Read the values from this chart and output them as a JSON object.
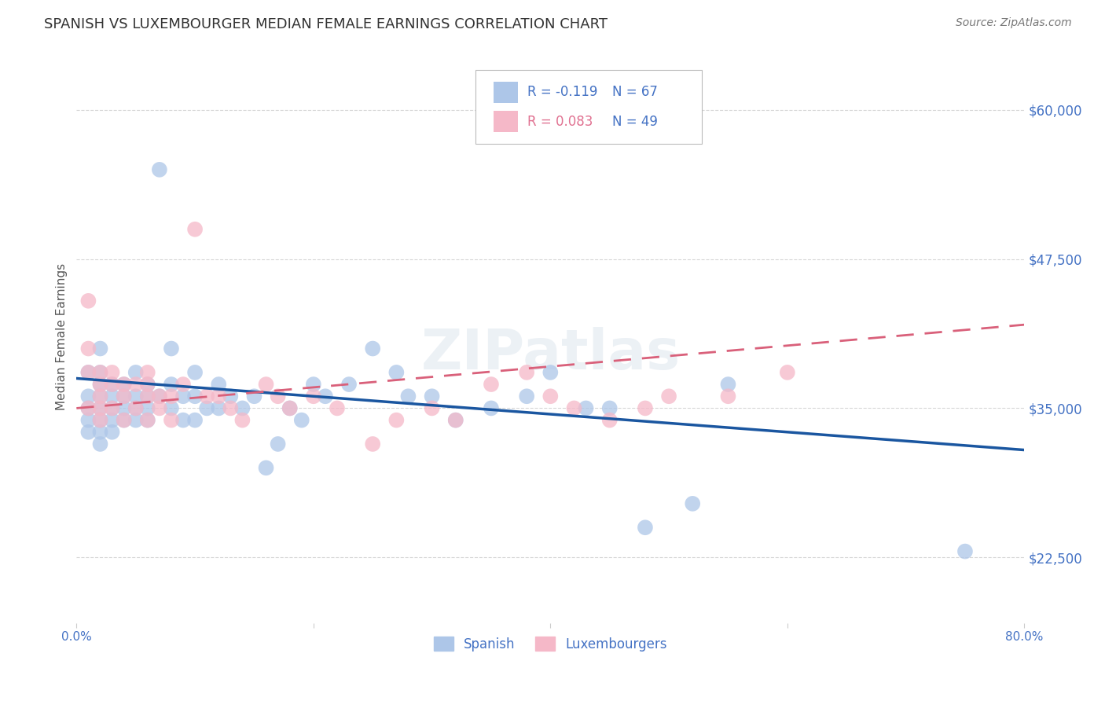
{
  "title": "SPANISH VS LUXEMBOURGER MEDIAN FEMALE EARNINGS CORRELATION CHART",
  "source_text": "Source: ZipAtlas.com",
  "ylabel": "Median Female Earnings",
  "xlim": [
    0.0,
    0.8
  ],
  "ylim": [
    17000,
    65000
  ],
  "yticks": [
    22500,
    35000,
    47500,
    60000
  ],
  "ytick_labels": [
    "$22,500",
    "$35,000",
    "$47,500",
    "$60,000"
  ],
  "xticks": [
    0.0,
    0.2,
    0.4,
    0.6,
    0.8
  ],
  "xtick_labels": [
    "0.0%",
    "",
    "",
    "",
    "80.0%"
  ],
  "title_color": "#333333",
  "title_fontsize": 13,
  "source_color": "#777777",
  "source_fontsize": 10,
  "axis_label_color": "#555555",
  "blue_color": "#adc6e8",
  "pink_color": "#f5b8c8",
  "blue_line_color": "#1a56a0",
  "pink_line_color": "#d9607a",
  "legend_label_blue": "Spanish",
  "legend_label_pink": "Luxembourgers",
  "blue_R": -0.119,
  "blue_N": 67,
  "pink_R": 0.083,
  "pink_N": 49,
  "blue_line_x0": 0.0,
  "blue_line_y0": 37500,
  "blue_line_x1": 0.8,
  "blue_line_y1": 31500,
  "pink_line_x0": 0.0,
  "pink_line_y0": 35000,
  "pink_line_x1": 0.8,
  "pink_line_y1": 42000,
  "blue_scatter_x": [
    0.01,
    0.01,
    0.01,
    0.01,
    0.01,
    0.02,
    0.02,
    0.02,
    0.02,
    0.02,
    0.02,
    0.02,
    0.02,
    0.03,
    0.03,
    0.03,
    0.03,
    0.03,
    0.04,
    0.04,
    0.04,
    0.04,
    0.05,
    0.05,
    0.05,
    0.05,
    0.06,
    0.06,
    0.06,
    0.06,
    0.07,
    0.07,
    0.08,
    0.08,
    0.08,
    0.09,
    0.09,
    0.1,
    0.1,
    0.1,
    0.11,
    0.12,
    0.12,
    0.13,
    0.14,
    0.15,
    0.16,
    0.17,
    0.18,
    0.19,
    0.2,
    0.21,
    0.23,
    0.25,
    0.27,
    0.28,
    0.3,
    0.32,
    0.35,
    0.38,
    0.4,
    0.43,
    0.45,
    0.48,
    0.52,
    0.55,
    0.75
  ],
  "blue_scatter_y": [
    38000,
    36000,
    35000,
    34000,
    33000,
    40000,
    38000,
    37000,
    36000,
    35000,
    34000,
    33000,
    32000,
    37000,
    36000,
    35000,
    34000,
    33000,
    37000,
    36000,
    35000,
    34000,
    38000,
    36000,
    35000,
    34000,
    37000,
    36000,
    35000,
    34000,
    55000,
    36000,
    40000,
    37000,
    35000,
    36000,
    34000,
    38000,
    36000,
    34000,
    35000,
    37000,
    35000,
    36000,
    35000,
    36000,
    30000,
    32000,
    35000,
    34000,
    37000,
    36000,
    37000,
    40000,
    38000,
    36000,
    36000,
    34000,
    35000,
    36000,
    38000,
    35000,
    35000,
    25000,
    27000,
    37000,
    23000
  ],
  "pink_scatter_x": [
    0.01,
    0.01,
    0.01,
    0.01,
    0.02,
    0.02,
    0.02,
    0.02,
    0.02,
    0.03,
    0.03,
    0.03,
    0.04,
    0.04,
    0.04,
    0.05,
    0.05,
    0.06,
    0.06,
    0.06,
    0.06,
    0.07,
    0.07,
    0.08,
    0.08,
    0.09,
    0.1,
    0.11,
    0.12,
    0.13,
    0.14,
    0.16,
    0.17,
    0.18,
    0.2,
    0.22,
    0.25,
    0.27,
    0.3,
    0.32,
    0.35,
    0.38,
    0.4,
    0.42,
    0.45,
    0.48,
    0.5,
    0.55,
    0.6
  ],
  "pink_scatter_y": [
    44000,
    40000,
    38000,
    35000,
    38000,
    37000,
    36000,
    35000,
    34000,
    38000,
    37000,
    35000,
    37000,
    36000,
    34000,
    37000,
    35000,
    38000,
    37000,
    36000,
    34000,
    36000,
    35000,
    36000,
    34000,
    37000,
    50000,
    36000,
    36000,
    35000,
    34000,
    37000,
    36000,
    35000,
    36000,
    35000,
    32000,
    34000,
    35000,
    34000,
    37000,
    38000,
    36000,
    35000,
    34000,
    35000,
    36000,
    36000,
    38000
  ],
  "watermark_text": "ZIPatlas",
  "background_color": "#ffffff",
  "grid_color": "#cccccc"
}
